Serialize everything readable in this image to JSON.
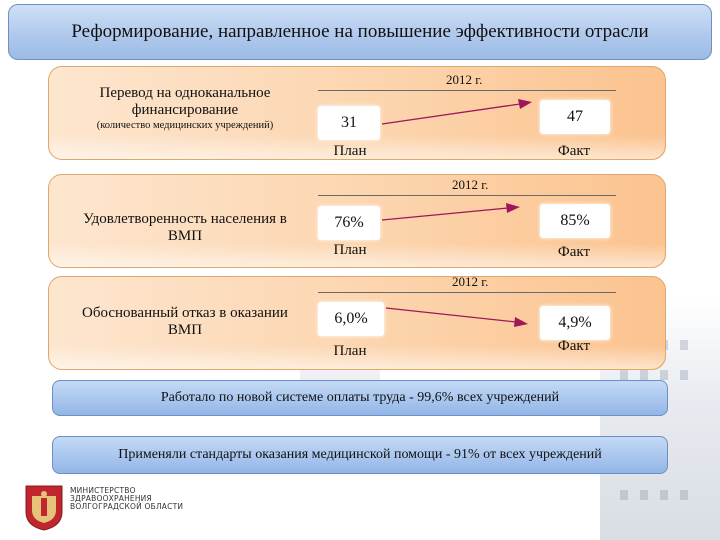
{
  "title": "Реформирование, направленное на повышение эффективности отрасли",
  "panels": [
    {
      "label": "Перевод на одноканальное финансирование",
      "sublabel": "(количество медицинских учреждений)",
      "year": "2012 г.",
      "plan_value": "31",
      "fact_value": "47",
      "plan_label": "План",
      "fact_label": "Факт"
    },
    {
      "label": "Удовлетворенность населения в ВМП",
      "sublabel": "",
      "year": "2012 г.",
      "plan_value": "76%",
      "fact_value": "85%",
      "plan_label": "План",
      "fact_label": "Факт"
    },
    {
      "label": "Обоснованный отказ в оказании ВМП",
      "sublabel": "",
      "year": "2012 г.",
      "plan_value": "6,0%",
      "fact_value": "4,9%",
      "plan_label": "План",
      "fact_label": "Факт"
    }
  ],
  "info": [
    "Работало по новой системе оплаты труда - 99,6% всех учреждений",
    "Применяли стандарты оказания медицинской помощи - 91% от всех учреждений"
  ],
  "ministry": {
    "line1": "МИНИСТЕРСТВО",
    "line2": "ЗДРАВООХРАНЕНИЯ",
    "line3": "ВОЛГОГРАДСКОЙ ОБЛАСТИ"
  },
  "colors": {
    "title_bg": "#b0c9ec",
    "panel_bg": "#fcd6b0",
    "panel_border": "#e0a768",
    "arrow": "#a0165a",
    "logo_red": "#c0262d"
  }
}
